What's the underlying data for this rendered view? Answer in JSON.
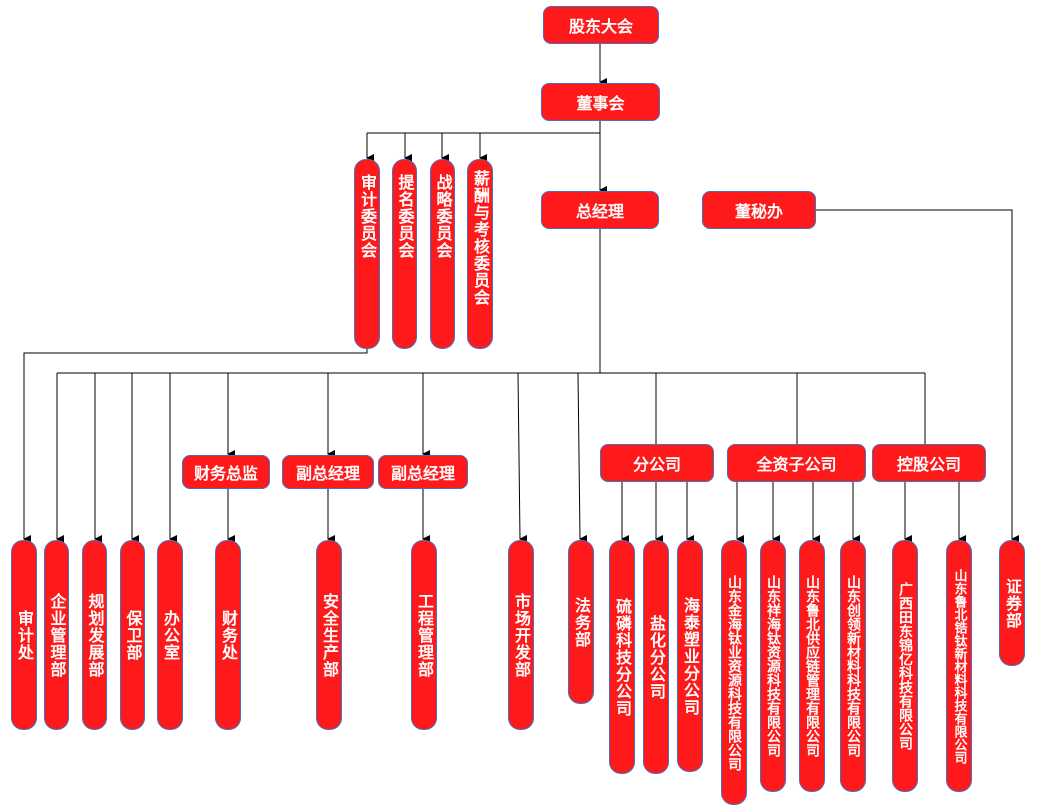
{
  "colors": {
    "node_fill": "#fe1a1a",
    "node_border": "#4a6fc0",
    "text": "#ffffff",
    "line": "#000000"
  },
  "top": {
    "shareholders": "股东大会",
    "board": "董事会",
    "gm": "总经理",
    "secretary": "董秘办"
  },
  "committees": [
    "审计委员会",
    "提名委员会",
    "战略委员会",
    "薪酬与考核委员会"
  ],
  "middle": {
    "cfo": "财务总监",
    "vp1": "副总经理",
    "vp2": "副总经理",
    "branches": "分公司",
    "wholly_owned": "全资子公司",
    "holding": "控股公司"
  },
  "departments": [
    "审计处",
    "企业管理部",
    "规划发展部",
    "保卫部",
    "办公室",
    "财务处",
    "安全生产部",
    "工程管理部",
    "市场开发部",
    "法务部",
    "证券部"
  ],
  "branch_companies": [
    "硫磷科技分公司",
    "盐化分公司",
    "海泰塑业分公司"
  ],
  "subsidiaries": [
    "山东金海钛业资源科技有限公司",
    "山东祥海钛资源科技有限公司",
    "山东鲁北供应链管理有限公司",
    "山东创领新材料科技有限公司"
  ],
  "holding_companies": [
    "广西田东锦亿科技有限公司",
    "山东鲁北锆钛新材料科技有限公司"
  ]
}
